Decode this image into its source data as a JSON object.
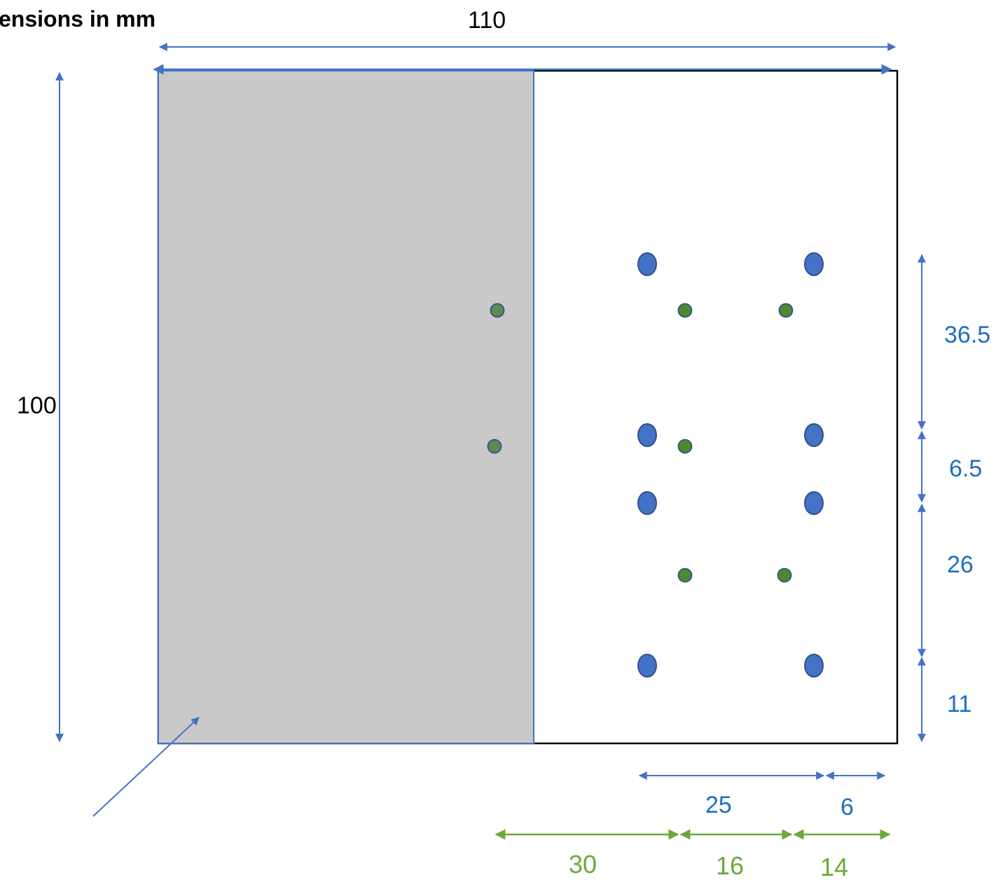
{
  "title": "ensions in mm",
  "colors": {
    "outline": "#000000",
    "shaded_region": "#c9c9c9",
    "dimension_blue": "#4472c4",
    "label_blue": "#1f6fbf",
    "dimension_green": "#6aa93a",
    "hole_large_fill": "#4472c4",
    "hole_small_fill": "#4e8a2c"
  },
  "dimensions": {
    "overall_width": "110",
    "overall_height": "100",
    "right_vertical": [
      "36.5",
      "6.5",
      "26",
      "11"
    ],
    "bottom_blue": [
      "25",
      "6"
    ],
    "bottom_green": [
      "30",
      "16",
      "14"
    ]
  }
}
